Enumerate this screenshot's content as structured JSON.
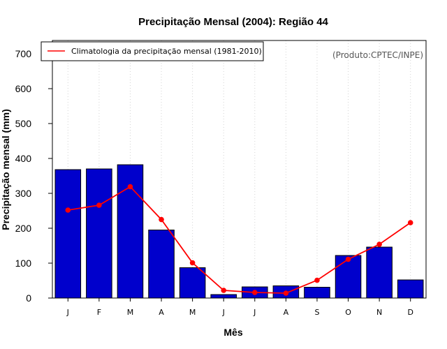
{
  "chart_data": {
    "type": "bar",
    "title": "Precipitação Mensal (2004): Região 44",
    "xlabel": "Mês",
    "ylabel": "Precipitação mensal (mm)",
    "ylim": [
      0,
      700
    ],
    "yticks": [
      0,
      100,
      200,
      300,
      400,
      500,
      600,
      700
    ],
    "categories": [
      "J",
      "F",
      "M",
      "A",
      "M",
      "J",
      "J",
      "A",
      "S",
      "O",
      "N",
      "D"
    ],
    "series": [
      {
        "name": "Precipitação mensal 2004",
        "kind": "bar",
        "color": "#0000CC",
        "values": [
          368,
          370,
          382,
          195,
          87,
          10,
          32,
          35,
          31,
          122,
          146,
          52
        ]
      },
      {
        "name": "Climatologia da precipitação mensal (1981-2010)",
        "kind": "line",
        "color": "#FF0000",
        "values": [
          252,
          266,
          319,
          225,
          101,
          22,
          16,
          14,
          51,
          111,
          154,
          216
        ]
      }
    ],
    "legend": {
      "position": "top-left",
      "label": "Climatologia da precipitação mensal (1981-2010)"
    },
    "grid": {
      "vertical": true,
      "horizontal": false
    },
    "annotation": "(Produto:CPTEC/INPE)"
  }
}
